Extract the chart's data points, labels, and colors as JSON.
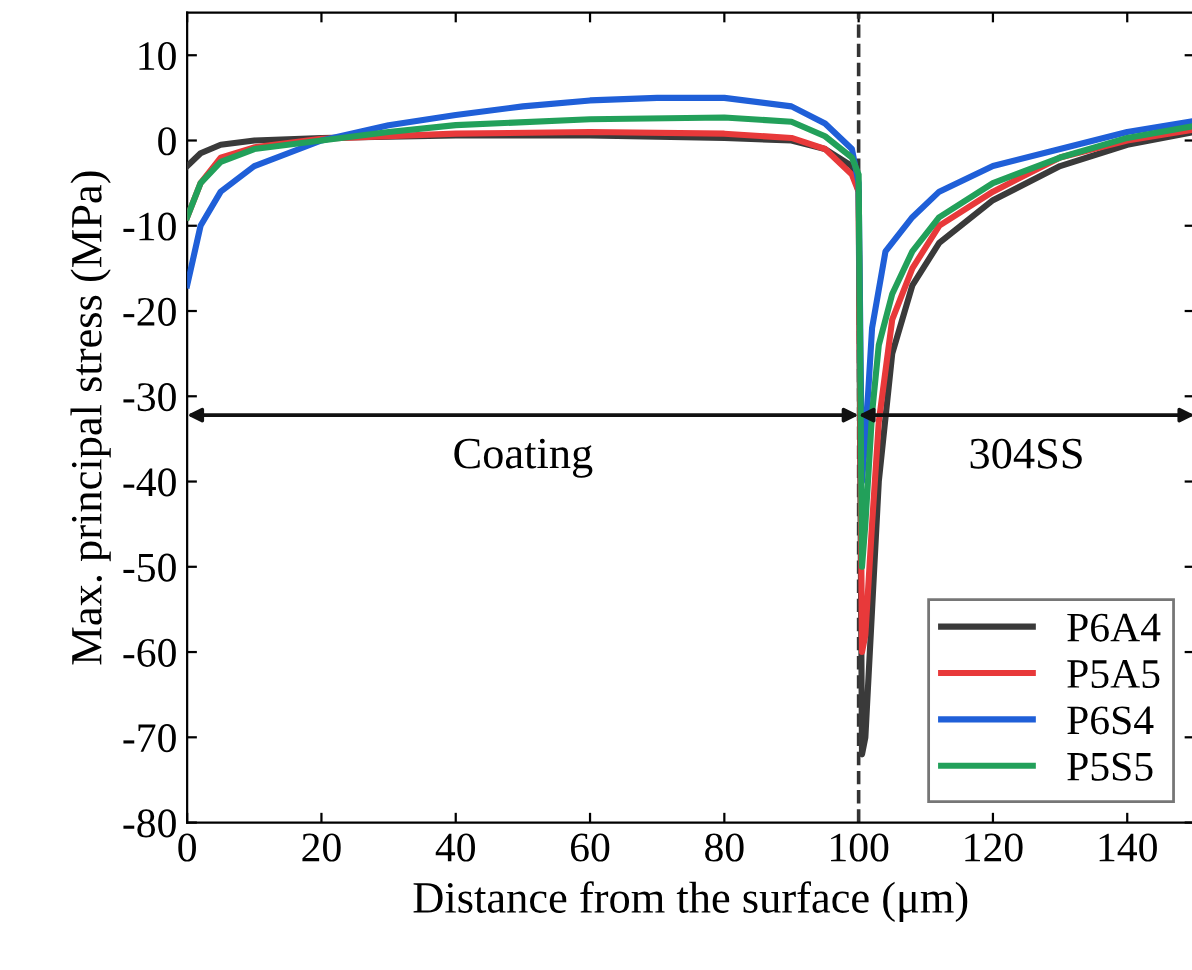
{
  "chart_data": {
    "type": "line",
    "xlabel": "Distance from the surface (μm)",
    "ylabel": "Max. principal stress (MPa)",
    "xlim": [
      0,
      150
    ],
    "xticks": [
      0,
      20,
      40,
      60,
      80,
      100,
      120,
      140
    ],
    "ylim": [
      -80,
      15
    ],
    "yticks": [
      -80,
      -70,
      -60,
      -50,
      -40,
      -30,
      -20,
      -10,
      0,
      10
    ],
    "legend": "bottom right",
    "grid": false,
    "marker": "none",
    "line_style": "solid",
    "ref_lines": [
      {
        "axis": "x",
        "value": 100,
        "line_style": "dashed",
        "color": "#333333"
      }
    ],
    "annotations": [
      "Coating",
      "304SS"
    ],
    "series": [
      {
        "name": "P6A4",
        "color": "#3a3a3a",
        "x": [
          0,
          2,
          5,
          10,
          20,
          40,
          60,
          80,
          90,
          95,
          99,
          100,
          100.5,
          101,
          102,
          103,
          105,
          108,
          112,
          120,
          130,
          140,
          150
        ],
        "values": [
          -3,
          -1.5,
          -0.5,
          0,
          0.3,
          0.6,
          0.6,
          0.3,
          0,
          -1,
          -3,
          -6,
          -72,
          -70,
          -55,
          -40,
          -25,
          -17,
          -12,
          -7,
          -3,
          -0.5,
          1
        ]
      },
      {
        "name": "P5A5",
        "color": "#e8393a",
        "x": [
          0,
          2,
          5,
          10,
          20,
          40,
          60,
          80,
          90,
          95,
          99,
          100,
          100.5,
          101,
          102,
          103,
          105,
          108,
          112,
          120,
          130,
          140,
          150
        ],
        "values": [
          -9,
          -5,
          -2,
          -0.8,
          0.2,
          0.8,
          1,
          0.8,
          0.3,
          -1,
          -4,
          -6,
          -60,
          -58,
          -45,
          -33,
          -21,
          -15,
          -10,
          -6,
          -2,
          0,
          1.3
        ]
      },
      {
        "name": "P6S4",
        "color": "#1f5fd8",
        "x": [
          0,
          2,
          5,
          10,
          20,
          30,
          40,
          50,
          60,
          70,
          80,
          90,
          95,
          99,
          100,
          100.5,
          101,
          102,
          104,
          108,
          112,
          120,
          130,
          140,
          150
        ],
        "values": [
          -17,
          -10,
          -6,
          -3,
          0,
          1.8,
          3,
          4,
          4.7,
          5,
          5,
          4,
          2,
          -1,
          -5,
          -40,
          -35,
          -22,
          -13,
          -9,
          -6,
          -3,
          -1,
          1,
          2.3
        ]
      },
      {
        "name": "P5S5",
        "color": "#22a05a",
        "x": [
          0,
          2,
          5,
          10,
          20,
          30,
          40,
          60,
          80,
          90,
          95,
          99,
          100,
          100.5,
          101,
          102,
          103,
          105,
          108,
          112,
          120,
          130,
          140,
          150
        ],
        "values": [
          -9,
          -5,
          -2.5,
          -1,
          0,
          1,
          1.8,
          2.5,
          2.7,
          2.2,
          0.5,
          -2,
          -4,
          -50,
          -45,
          -32,
          -24,
          -18,
          -13,
          -9,
          -5,
          -2,
          0.3,
          1.7
        ]
      }
    ]
  }
}
